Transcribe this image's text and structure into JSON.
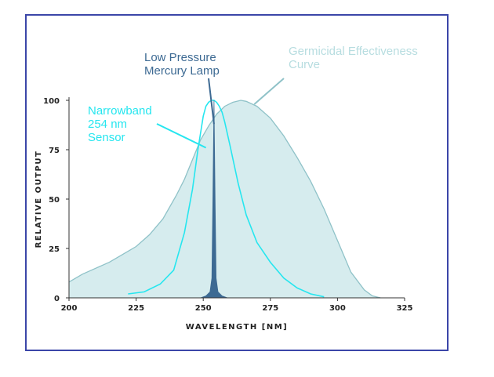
{
  "chart_data": {
    "type": "area",
    "title": "",
    "xlabel": "WAVELENGTH [NM]",
    "ylabel": "RELATIVE OUTPUT",
    "xlim": [
      200,
      325
    ],
    "ylim": [
      0,
      100
    ],
    "xticks": [
      200,
      225,
      250,
      275,
      300,
      325
    ],
    "yticks": [
      0,
      25,
      50,
      75,
      100
    ],
    "grid": false,
    "colors": {
      "germicidal_fill": "#d6ecee",
      "germicidal_line": "#8fc2c8",
      "germicidal_label": "#b7dde0",
      "sensor": "#26e6ef",
      "lamp": "#3d6a93",
      "lamp_label": "#3d6a93",
      "axis": "#333333"
    },
    "series": [
      {
        "name": "Germicidal Effectiveness Curve",
        "x": [
          200,
          205,
          210,
          215,
          220,
          225,
          230,
          235,
          240,
          243,
          246,
          249,
          252,
          255,
          258,
          261,
          264,
          266,
          270,
          275,
          280,
          285,
          290,
          295,
          300,
          305,
          310,
          313,
          316
        ],
        "y": [
          8,
          12,
          15,
          18,
          22,
          26,
          32,
          40,
          52,
          60,
          70,
          80,
          87,
          93,
          97,
          99,
          100,
          99.5,
          97,
          91,
          82,
          71,
          59,
          45,
          29,
          13,
          4,
          1,
          0
        ]
      },
      {
        "name": "Narrowband 254 nm Sensor",
        "x": [
          222,
          228,
          234,
          239,
          243,
          246,
          248,
          250,
          251,
          252,
          253,
          254,
          255,
          256,
          257,
          258,
          260,
          263,
          266,
          270,
          275,
          280,
          285,
          290,
          295
        ],
        "y": [
          2,
          3,
          7,
          14,
          33,
          55,
          75,
          92,
          97,
          99,
          100,
          100,
          99,
          97,
          94,
          89,
          77,
          58,
          42,
          28,
          18,
          10,
          5,
          2,
          0.5
        ]
      },
      {
        "name": "Low Pressure Mercury Lamp",
        "x": [
          249,
          251,
          252.5,
          253.2,
          253.6,
          254,
          254.4,
          254.8,
          255.5,
          257,
          259
        ],
        "y": [
          0,
          1,
          3,
          10,
          50,
          100,
          50,
          10,
          3,
          1,
          0
        ]
      }
    ],
    "annotations": [
      {
        "name": "lamp",
        "lines": [
          "Low Pressure",
          "Mercury Lamp"
        ],
        "pointer": [
          254,
          88
        ]
      },
      {
        "name": "germicidal",
        "lines": [
          "Germicidal Effectiveness",
          "Curve"
        ],
        "pointer": [
          269,
          98
        ]
      },
      {
        "name": "sensor",
        "lines": [
          "Narrowband",
          "254 nm",
          "Sensor"
        ],
        "pointer": [
          251,
          76
        ]
      }
    ]
  }
}
